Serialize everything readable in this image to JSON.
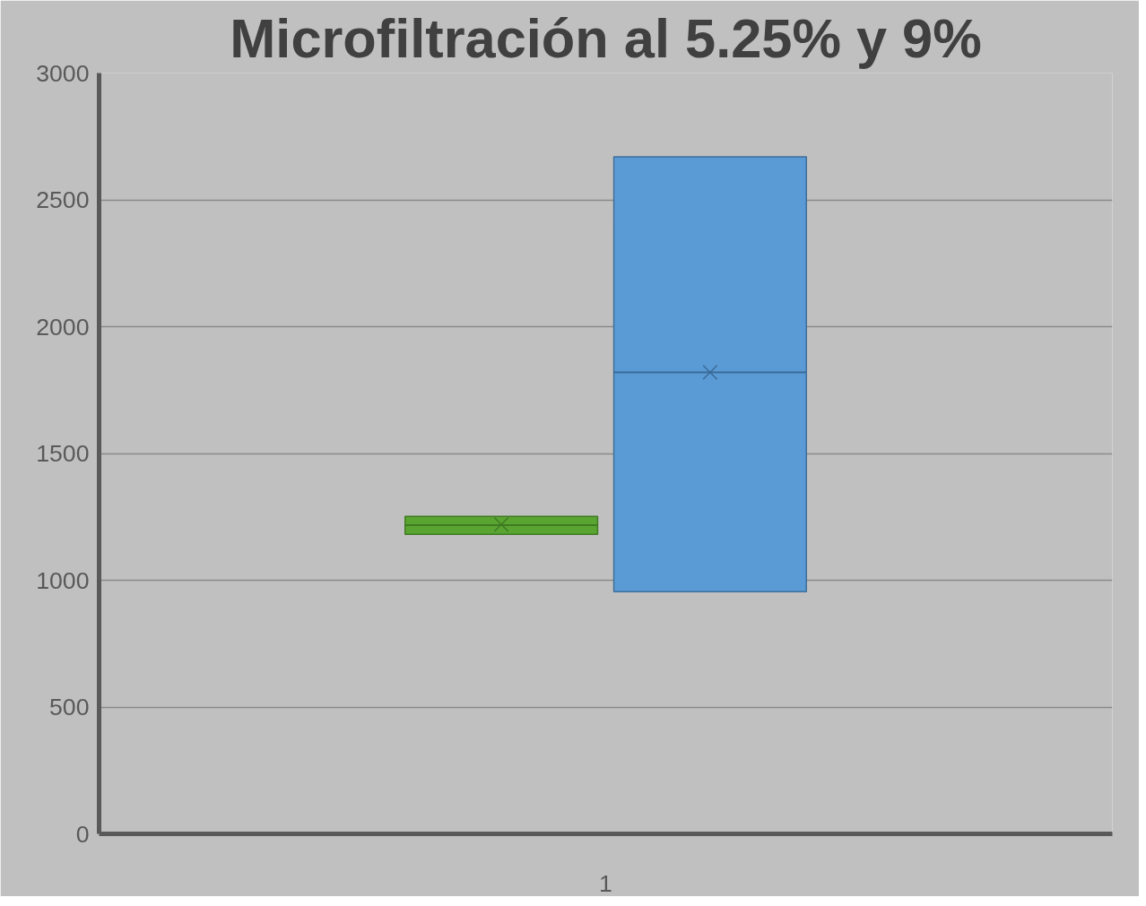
{
  "chart_data": {
    "type": "box",
    "title": "Microfiltración al 5.25% y 9%",
    "categories": [
      "1"
    ],
    "series": [
      {
        "color": "#5aa532",
        "boxes": [
          {
            "low": 1181,
            "q1": 1181,
            "median": 1217,
            "q3": 1252,
            "high": 1252,
            "mean": 1220
          }
        ]
      },
      {
        "color": "#5b9bd5",
        "boxes": [
          {
            "low": 955,
            "q1": 955,
            "median": 1820,
            "q3": 2670,
            "high": 2670,
            "mean": 1820
          }
        ]
      }
    ],
    "ylim": [
      0,
      3000
    ],
    "yticks": [
      0,
      500,
      1000,
      1500,
      2000,
      2500,
      3000
    ],
    "grid": "y"
  }
}
